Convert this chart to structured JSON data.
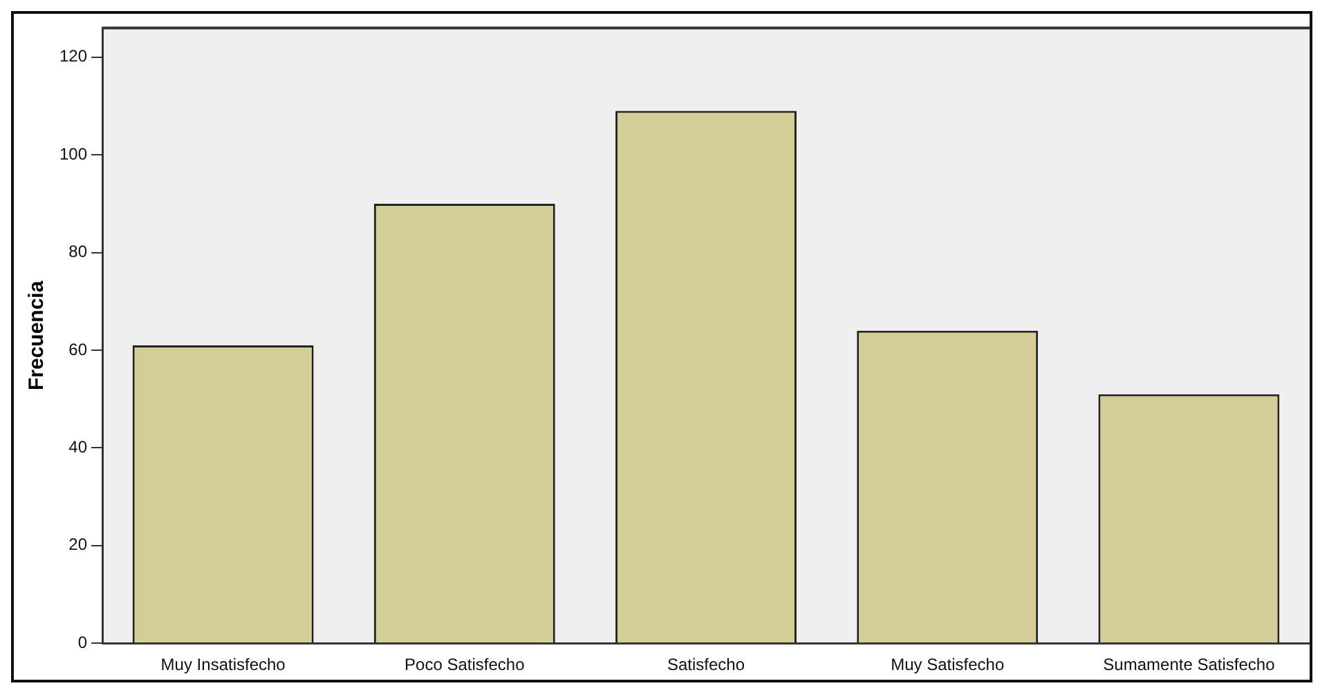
{
  "chart_data": {
    "type": "bar",
    "ylabel": "Frecuencia",
    "categories": [
      "Muy Insatisfecho",
      "Poco Satisfecho",
      "Satisfecho",
      "Muy Satisfecho",
      "Sumamente Satisfecho"
    ],
    "values": [
      61,
      90,
      109,
      64,
      51
    ],
    "color": "#d3cd96",
    "ylim": [
      0,
      126
    ],
    "yticks": [
      0,
      20,
      40,
      60,
      80,
      100,
      120
    ],
    "grid": false,
    "legend": false
  }
}
